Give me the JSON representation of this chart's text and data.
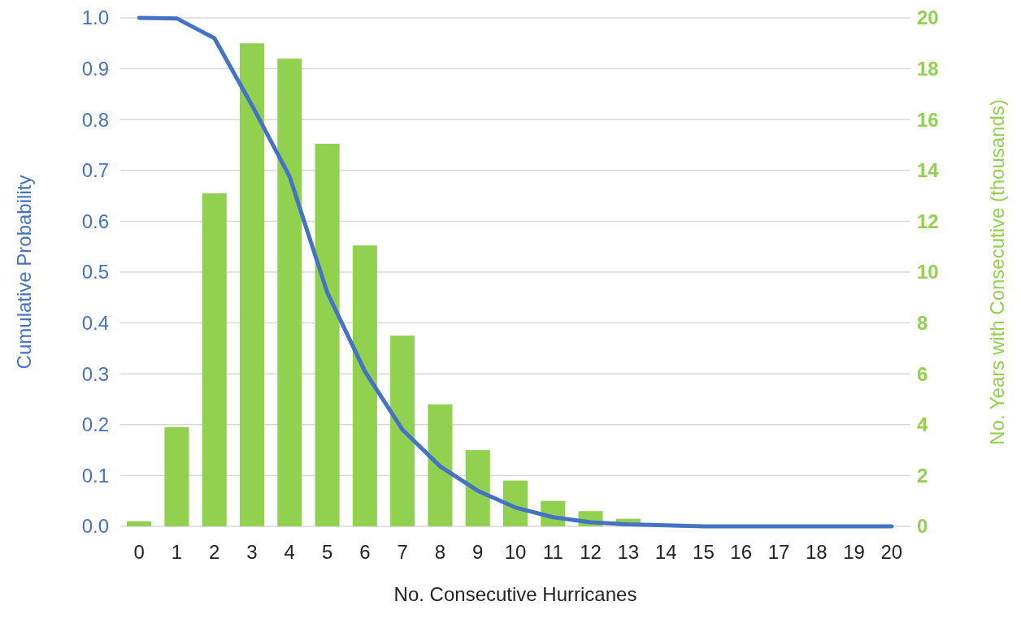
{
  "chart_data": {
    "type": "bar",
    "xlabel": "No. Consecutive Hurricanes",
    "ylabel": "Cumulative Probability",
    "y2label": "No. Years with Consecutive (thousands)",
    "categories": [
      "0",
      "1",
      "2",
      "3",
      "4",
      "5",
      "6",
      "7",
      "8",
      "9",
      "10",
      "11",
      "12",
      "13",
      "14",
      "15",
      "16",
      "17",
      "18",
      "19",
      "20"
    ],
    "series": [
      {
        "axis": "y2",
        "color": "#92d050",
        "values": [
          0.2,
          3.9,
          13.1,
          19.0,
          18.4,
          15.05,
          11.05,
          7.5,
          4.8,
          3.0,
          1.8,
          1.0,
          0.6,
          0.3,
          0,
          0,
          0,
          0,
          0,
          0,
          0
        ]
      },
      {
        "type": "line",
        "axis": "y",
        "color": "#4472c4",
        "values": [
          1.0,
          0.999,
          0.96,
          0.828,
          0.688,
          0.46,
          0.305,
          0.19,
          0.118,
          0.07,
          0.037,
          0.018,
          0.008,
          0.004,
          0.002,
          0,
          0,
          0,
          0,
          0,
          0
        ]
      }
    ],
    "ylim": [
      0,
      1
    ],
    "yticks": [
      {
        "value": 0,
        "label": "0.0"
      },
      {
        "value": 0.1,
        "label": "0.1"
      },
      {
        "value": 0.2,
        "label": "0.2"
      },
      {
        "value": 0.3,
        "label": "0.3"
      },
      {
        "value": 0.4,
        "label": "0.4"
      },
      {
        "value": 0.5,
        "label": "0.5"
      },
      {
        "value": 0.6,
        "label": "0.6"
      },
      {
        "value": 0.7,
        "label": "0.7"
      },
      {
        "value": 0.8,
        "label": "0.8"
      },
      {
        "value": 0.9,
        "label": "0.9"
      },
      {
        "value": 1,
        "label": "1.0"
      }
    ],
    "y2lim": [
      0,
      20
    ],
    "y2ticks": [
      0,
      2,
      4,
      6,
      8,
      10,
      12,
      14,
      16,
      18,
      20
    ],
    "grid": "y"
  }
}
